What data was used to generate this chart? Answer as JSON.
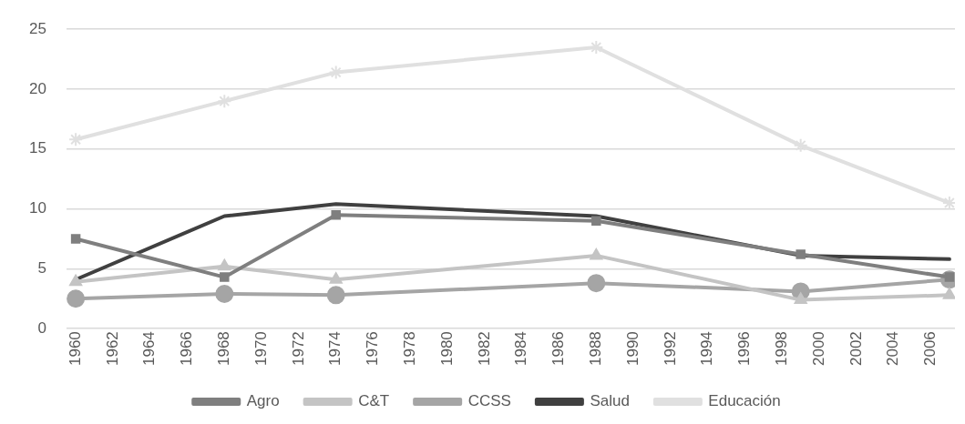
{
  "chart_data": {
    "type": "line",
    "x": [
      1960,
      1968,
      1974,
      1988,
      1999,
      2007
    ],
    "series": [
      {
        "name": "Agro",
        "color": "#7f7f7f",
        "marker": "square",
        "values": [
          7.5,
          4.3,
          9.5,
          9.0,
          6.2,
          4.3
        ]
      },
      {
        "name": "C&T",
        "color": "#c4c4c4",
        "marker": "triangle",
        "values": [
          3.9,
          5.2,
          4.1,
          6.1,
          2.4,
          2.8
        ]
      },
      {
        "name": "CCSS",
        "color": "#a5a5a5",
        "marker": "circle",
        "values": [
          2.5,
          2.9,
          2.8,
          3.8,
          3.1,
          4.1
        ]
      },
      {
        "name": "Salud",
        "color": "#404040",
        "marker": "none",
        "values": [
          4.1,
          9.4,
          10.4,
          9.4,
          6.1,
          5.8
        ]
      },
      {
        "name": "Educación",
        "color": "#e0e0e0",
        "marker": "cross",
        "values": [
          15.8,
          19.0,
          21.4,
          23.5,
          15.3,
          10.5
        ]
      }
    ],
    "xlim": [
      1959.5,
      2007.3
    ],
    "xticks": [
      1960,
      1962,
      1964,
      1966,
      1968,
      1970,
      1972,
      1974,
      1976,
      1978,
      1980,
      1982,
      1984,
      1986,
      1988,
      1990,
      1992,
      1994,
      1996,
      1998,
      2000,
      2002,
      2004,
      2006
    ],
    "ylim": [
      0,
      25
    ],
    "yticks": [
      0,
      5,
      10,
      15,
      20,
      25
    ],
    "grid": "y",
    "legend": "bottom",
    "line_style": "solid"
  }
}
